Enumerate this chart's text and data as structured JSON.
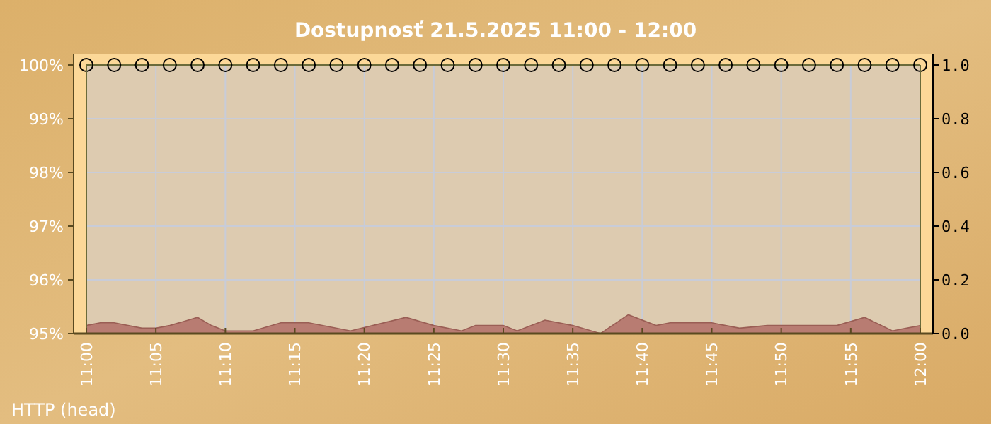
{
  "chart_data": {
    "type": "line",
    "title": "Dostupnosť 21.5.2025 11:00 - 12:00",
    "annotations": [
      "HTTP (head)"
    ],
    "grid": true,
    "marker": "circle",
    "xlim": [
      "2025-05-21T11:00",
      "2025-05-21T12:00"
    ],
    "xticks": [
      {
        "value": "2025-05-21T11:00",
        "label": "11:00"
      },
      {
        "value": "2025-05-21T11:05",
        "label": "11:05"
      },
      {
        "value": "2025-05-21T11:10",
        "label": "11:10"
      },
      {
        "value": "2025-05-21T11:15",
        "label": "11:15"
      },
      {
        "value": "2025-05-21T11:20",
        "label": "11:20"
      },
      {
        "value": "2025-05-21T11:25",
        "label": "11:25"
      },
      {
        "value": "2025-05-21T11:30",
        "label": "11:30"
      },
      {
        "value": "2025-05-21T11:35",
        "label": "11:35"
      },
      {
        "value": "2025-05-21T11:40",
        "label": "11:40"
      },
      {
        "value": "2025-05-21T11:45",
        "label": "11:45"
      },
      {
        "value": "2025-05-21T11:50",
        "label": "11:50"
      },
      {
        "value": "2025-05-21T11:55",
        "label": "11:55"
      },
      {
        "value": "2025-05-21T12:00",
        "label": "12:00"
      }
    ],
    "ylim": [
      95,
      100
    ],
    "yticks": [
      {
        "value": 95,
        "label": "95%"
      },
      {
        "value": 96,
        "label": "96%"
      },
      {
        "value": 97,
        "label": "97%"
      },
      {
        "value": 98,
        "label": "98%"
      },
      {
        "value": 99,
        "label": "99%"
      },
      {
        "value": 100,
        "label": "100%"
      }
    ],
    "y2lim": [
      0,
      1
    ],
    "y2ticks": [
      {
        "value": 0,
        "label": "0.0"
      },
      0.2,
      0.4,
      0.6,
      0.8,
      {
        "value": 1,
        "label": "1.0"
      }
    ],
    "series": [
      {
        "type": "area",
        "axis": "y2",
        "marker": "none",
        "color": "#b87c72",
        "x": [
          "2025-05-21T11:00",
          "2025-05-21T11:01",
          "2025-05-21T11:02",
          "2025-05-21T11:04",
          "2025-05-21T11:05",
          "2025-05-21T11:06",
          "2025-05-21T11:08",
          "2025-05-21T11:09",
          "2025-05-21T11:10",
          "2025-05-21T11:12",
          "2025-05-21T11:14",
          "2025-05-21T11:16",
          "2025-05-21T11:19",
          "2025-05-21T11:23",
          "2025-05-21T11:25",
          "2025-05-21T11:27",
          "2025-05-21T11:28",
          "2025-05-21T11:30",
          "2025-05-21T11:31",
          "2025-05-21T11:33",
          "2025-05-21T11:35",
          "2025-05-21T11:37",
          "2025-05-21T11:39",
          "2025-05-21T11:41",
          "2025-05-21T11:42",
          "2025-05-21T11:45",
          "2025-05-21T11:47",
          "2025-05-21T11:49",
          "2025-05-21T11:54",
          "2025-05-21T11:56",
          "2025-05-21T11:58",
          "2025-05-21T12:00"
        ],
        "values": [
          0.03,
          0.04,
          0.04,
          0.02,
          0.02,
          0.03,
          0.06,
          0.03,
          0.01,
          0.01,
          0.04,
          0.04,
          0.01,
          0.06,
          0.03,
          0.01,
          0.03,
          0.03,
          0.01,
          0.05,
          0.03,
          0.0,
          0.07,
          0.03,
          0.04,
          0.04,
          0.02,
          0.03,
          0.03,
          0.06,
          0.01,
          0.03
        ]
      },
      {
        "axis": "y",
        "color": "#6b6b3a",
        "x": [
          "2025-05-21T11:00",
          "2025-05-21T11:02",
          "2025-05-21T11:04",
          "2025-05-21T11:06",
          "2025-05-21T11:08",
          "2025-05-21T11:10",
          "2025-05-21T11:12",
          "2025-05-21T11:14",
          "2025-05-21T11:16",
          "2025-05-21T11:18",
          "2025-05-21T11:20",
          "2025-05-21T11:22",
          "2025-05-21T11:24",
          "2025-05-21T11:26",
          "2025-05-21T11:28",
          "2025-05-21T11:30",
          "2025-05-21T11:32",
          "2025-05-21T11:34",
          "2025-05-21T11:36",
          "2025-05-21T11:38",
          "2025-05-21T11:40",
          "2025-05-21T11:42",
          "2025-05-21T11:44",
          "2025-05-21T11:46",
          "2025-05-21T11:48",
          "2025-05-21T11:50",
          "2025-05-21T11:52",
          "2025-05-21T11:54",
          "2025-05-21T11:56",
          "2025-05-21T11:58",
          "2025-05-21T12:00"
        ],
        "values": [
          100,
          100,
          100,
          100,
          100,
          100,
          100,
          100,
          100,
          100,
          100,
          100,
          100,
          100,
          100,
          100,
          100,
          100,
          100,
          100,
          100,
          100,
          100,
          100,
          100,
          100,
          100,
          100,
          100,
          100,
          100
        ]
      }
    ]
  }
}
